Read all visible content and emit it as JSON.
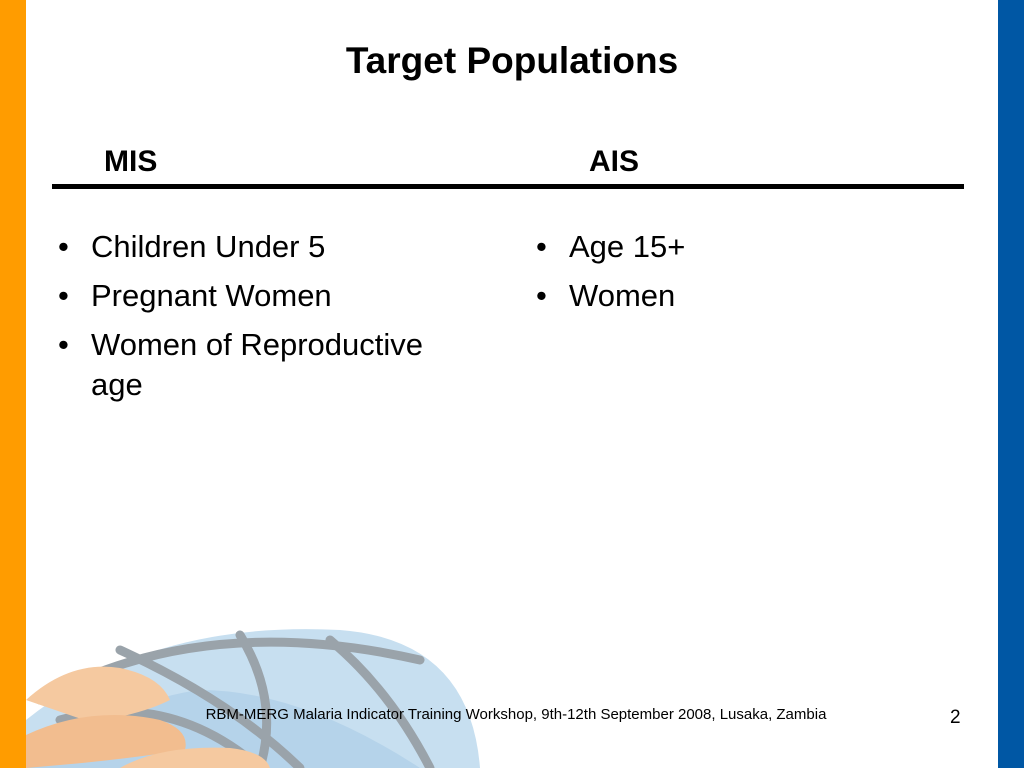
{
  "slide": {
    "title": "Target Populations",
    "columns": [
      {
        "header": "MIS",
        "items": [
          "Children Under 5",
          "Pregnant Women",
          "Women of Reproductive age"
        ]
      },
      {
        "header": "AIS",
        "items": [
          "Age 15+",
          "Women"
        ]
      }
    ],
    "footer": "RBM-MERG Malaria Indicator Training Workshop, 9th-12th September 2008, Lusaka, Zambia",
    "page_number": "2",
    "bullet_glyph": "•"
  },
  "colors": {
    "left_bar": "#ff9c00",
    "right_bar": "#0057a4",
    "globe_fill": "#c7dff0",
    "globe_lines": "#9aa3aa",
    "hand_fill": "#f5c9a0"
  },
  "icons": {
    "background_graphic": "globe-with-hands-graphic"
  }
}
